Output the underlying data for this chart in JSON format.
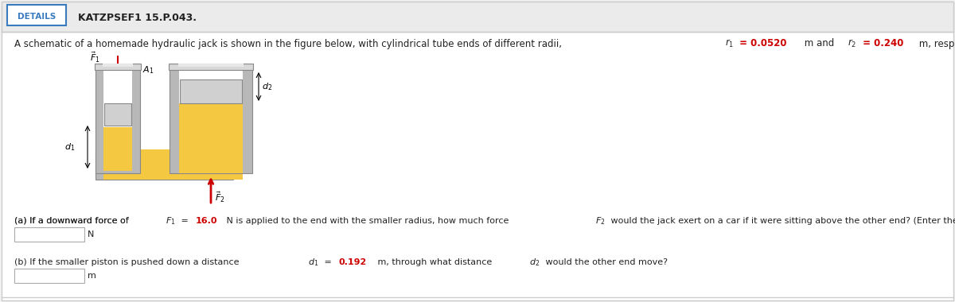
{
  "bg_color": "#f2f2f2",
  "main_bg": "#ffffff",
  "header_bg": "#ebebeb",
  "details_text": "DETAILS",
  "details_color": "#3a7abf",
  "details_border": "#3a7abf",
  "header_text": "KATZPSEF1 15.P.043.",
  "r_color": "#cc0000",
  "text_color": "#222222",
  "input_box_color": "#ffffff",
  "input_box_border": "#aaaaaa",
  "unit_a": "N",
  "unit_b": "m",
  "jack_fluid_color": "#f5c842",
  "jack_fluid_edge": "#c8a030",
  "jack_tube_color": "#b8b8b8",
  "jack_tube_edge": "#888888",
  "jack_tube_light": "#d8d8d8",
  "jack_tube_dark": "#909090",
  "jack_piston_color": "#d0d0d0",
  "jack_top_color": "#c8c8c8"
}
